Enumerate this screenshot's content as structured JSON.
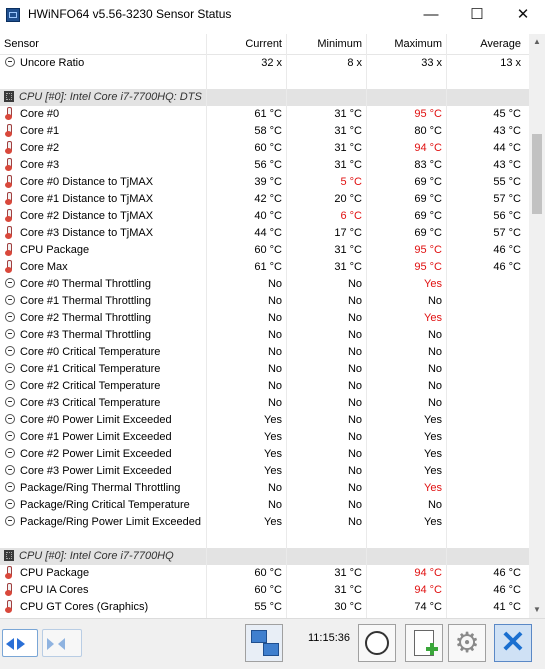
{
  "window": {
    "title": "HWiNFO64 v5.56-3230 Sensor Status",
    "minimize_glyph": "—",
    "maximize_glyph": "☐",
    "close_glyph": "✕"
  },
  "columns": [
    "Sensor",
    "Current",
    "Minimum",
    "Maximum",
    "Average"
  ],
  "rows": [
    {
      "kind": "sensor",
      "icon": "dash",
      "label": "Uncore Ratio",
      "cur": "32 x",
      "min": "8 x",
      "max": "33 x",
      "avg": "13 x"
    },
    {
      "kind": "blank"
    },
    {
      "kind": "group",
      "label": "CPU [#0]: Intel Core i7-7700HQ: DTS"
    },
    {
      "kind": "sensor",
      "icon": "therm",
      "label": "Core #0",
      "cur": "61 °C",
      "min": "31 °C",
      "max": "95 °C",
      "max_red": true,
      "avg": "45 °C"
    },
    {
      "kind": "sensor",
      "icon": "therm",
      "label": "Core #1",
      "cur": "58 °C",
      "min": "31 °C",
      "max": "80 °C",
      "avg": "43 °C"
    },
    {
      "kind": "sensor",
      "icon": "therm",
      "label": "Core #2",
      "cur": "60 °C",
      "min": "31 °C",
      "max": "94 °C",
      "max_red": true,
      "avg": "44 °C"
    },
    {
      "kind": "sensor",
      "icon": "therm",
      "label": "Core #3",
      "cur": "56 °C",
      "min": "31 °C",
      "max": "83 °C",
      "avg": "43 °C"
    },
    {
      "kind": "sensor",
      "icon": "therm",
      "label": "Core #0 Distance to TjMAX",
      "cur": "39 °C",
      "min": "5 °C",
      "min_red": true,
      "max": "69 °C",
      "avg": "55 °C"
    },
    {
      "kind": "sensor",
      "icon": "therm",
      "label": "Core #1 Distance to TjMAX",
      "cur": "42 °C",
      "min": "20 °C",
      "max": "69 °C",
      "avg": "57 °C"
    },
    {
      "kind": "sensor",
      "icon": "therm",
      "label": "Core #2 Distance to TjMAX",
      "cur": "40 °C",
      "min": "6 °C",
      "min_red": true,
      "max": "69 °C",
      "avg": "56 °C"
    },
    {
      "kind": "sensor",
      "icon": "therm",
      "label": "Core #3 Distance to TjMAX",
      "cur": "44 °C",
      "min": "17 °C",
      "max": "69 °C",
      "avg": "57 °C"
    },
    {
      "kind": "sensor",
      "icon": "therm",
      "label": "CPU Package",
      "cur": "60 °C",
      "min": "31 °C",
      "max": "95 °C",
      "max_red": true,
      "avg": "46 °C"
    },
    {
      "kind": "sensor",
      "icon": "therm",
      "label": "Core Max",
      "cur": "61 °C",
      "min": "31 °C",
      "max": "95 °C",
      "max_red": true,
      "avg": "46 °C"
    },
    {
      "kind": "sensor",
      "icon": "dash",
      "label": "Core #0 Thermal Throttling",
      "cur": "No",
      "min": "No",
      "max": "Yes",
      "max_red": true,
      "avg": ""
    },
    {
      "kind": "sensor",
      "icon": "dash",
      "label": "Core #1 Thermal Throttling",
      "cur": "No",
      "min": "No",
      "max": "No",
      "avg": ""
    },
    {
      "kind": "sensor",
      "icon": "dash",
      "label": "Core #2 Thermal Throttling",
      "cur": "No",
      "min": "No",
      "max": "Yes",
      "max_red": true,
      "avg": ""
    },
    {
      "kind": "sensor",
      "icon": "dash",
      "label": "Core #3 Thermal Throttling",
      "cur": "No",
      "min": "No",
      "max": "No",
      "avg": ""
    },
    {
      "kind": "sensor",
      "icon": "dash",
      "label": "Core #0 Critical Temperature",
      "cur": "No",
      "min": "No",
      "max": "No",
      "avg": ""
    },
    {
      "kind": "sensor",
      "icon": "dash",
      "label": "Core #1 Critical Temperature",
      "cur": "No",
      "min": "No",
      "max": "No",
      "avg": ""
    },
    {
      "kind": "sensor",
      "icon": "dash",
      "label": "Core #2 Critical Temperature",
      "cur": "No",
      "min": "No",
      "max": "No",
      "avg": ""
    },
    {
      "kind": "sensor",
      "icon": "dash",
      "label": "Core #3 Critical Temperature",
      "cur": "No",
      "min": "No",
      "max": "No",
      "avg": ""
    },
    {
      "kind": "sensor",
      "icon": "dash",
      "label": "Core #0 Power Limit Exceeded",
      "cur": "Yes",
      "min": "No",
      "max": "Yes",
      "avg": ""
    },
    {
      "kind": "sensor",
      "icon": "dash",
      "label": "Core #1 Power Limit Exceeded",
      "cur": "Yes",
      "min": "No",
      "max": "Yes",
      "avg": ""
    },
    {
      "kind": "sensor",
      "icon": "dash",
      "label": "Core #2 Power Limit Exceeded",
      "cur": "Yes",
      "min": "No",
      "max": "Yes",
      "avg": ""
    },
    {
      "kind": "sensor",
      "icon": "dash",
      "label": "Core #3 Power Limit Exceeded",
      "cur": "Yes",
      "min": "No",
      "max": "Yes",
      "avg": ""
    },
    {
      "kind": "sensor",
      "icon": "dash",
      "label": "Package/Ring Thermal Throttling",
      "cur": "No",
      "min": "No",
      "max": "Yes",
      "max_red": true,
      "avg": ""
    },
    {
      "kind": "sensor",
      "icon": "dash",
      "label": "Package/Ring Critical Temperature",
      "cur": "No",
      "min": "No",
      "max": "No",
      "avg": ""
    },
    {
      "kind": "sensor",
      "icon": "dash",
      "label": "Package/Ring Power Limit Exceeded",
      "cur": "Yes",
      "min": "No",
      "max": "Yes",
      "avg": ""
    },
    {
      "kind": "blank"
    },
    {
      "kind": "group",
      "label": "CPU [#0]: Intel Core i7-7700HQ"
    },
    {
      "kind": "sensor",
      "icon": "therm",
      "label": "CPU Package",
      "cur": "60 °C",
      "min": "31 °C",
      "max": "94 °C",
      "max_red": true,
      "avg": "46 °C"
    },
    {
      "kind": "sensor",
      "icon": "therm",
      "label": "CPU IA Cores",
      "cur": "60 °C",
      "min": "31 °C",
      "max": "94 °C",
      "max_red": true,
      "avg": "46 °C"
    },
    {
      "kind": "sensor",
      "icon": "therm",
      "label": "CPU GT Cores (Graphics)",
      "cur": "55 °C",
      "min": "30 °C",
      "max": "74 °C",
      "avg": "41 °C"
    }
  ],
  "toolbar": {
    "clock": "11:15:36"
  },
  "colors": {
    "alert": "#e01010",
    "group_bg": "#e3e3e3"
  }
}
